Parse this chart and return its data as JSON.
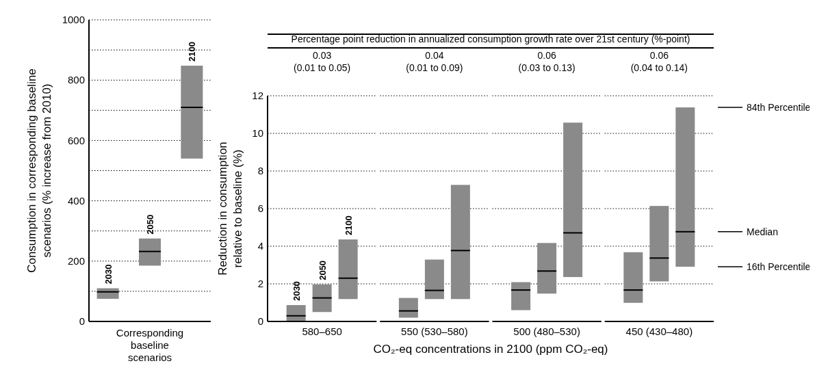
{
  "chart_data": [
    {
      "type": "box",
      "ylabel": "Consumption in corresponding baseline scenarios (% increase from 2010)",
      "xlabel": "Corresponding baseline scenarios",
      "categories": [
        "2030",
        "2050",
        "2100"
      ],
      "series": [
        {
          "color": "#8a8a8a",
          "boxes": [
            {
              "low": 75,
              "q1": 75,
              "median": 98,
              "q3": 110,
              "high": 110
            },
            {
              "low": 185,
              "q1": 185,
              "median": 232,
              "q3": 275,
              "high": 275
            },
            {
              "low": 540,
              "q1": 540,
              "median": 710,
              "q3": 848,
              "high": 848
            }
          ]
        }
      ],
      "ylim": [
        0,
        1000
      ],
      "yticks": [
        0,
        {
          "value": 100,
          "label": null
        },
        200,
        {
          "value": 300,
          "label": null
        },
        400,
        {
          "value": 500,
          "label": null
        },
        600,
        {
          "value": 700,
          "label": null
        },
        800,
        {
          "value": 900,
          "label": null
        },
        1000
      ],
      "grid": "y"
    },
    {
      "type": "box",
      "xlabel": "CO₂-eq concentrations in 2100 (ppm CO₂-eq)",
      "ylabel": "Reduction in consumption relative to baseline (%)",
      "categories": [
        "580–650",
        "550 (530–580)",
        "500 (480–530)",
        "450 (430–480)"
      ],
      "series": [
        {
          "name": "2030",
          "color": "#8a8a8a",
          "boxes": [
            {
              "low": 0,
              "q1": 0,
              "median": 0.3,
              "q3": 0.87,
              "high": 0.87
            },
            {
              "low": 0.2,
              "q1": 0.2,
              "median": 0.56,
              "q3": 1.25,
              "high": 1.25
            },
            {
              "low": 0.6,
              "q1": 0.6,
              "median": 1.67,
              "q3": 2.09,
              "high": 2.09
            },
            {
              "low": 0.99,
              "q1": 0.99,
              "median": 1.67,
              "q3": 3.68,
              "high": 3.68
            }
          ]
        },
        {
          "name": "2050",
          "color": "#8a8a8a",
          "boxes": [
            {
              "low": 0.5,
              "q1": 0.5,
              "median": 1.25,
              "q3": 1.97,
              "high": 1.97
            },
            {
              "low": 1.19,
              "q1": 1.19,
              "median": 1.65,
              "q3": 3.29,
              "high": 3.29
            },
            {
              "low": 1.48,
              "q1": 1.48,
              "median": 2.68,
              "q3": 4.17,
              "high": 4.17
            },
            {
              "low": 2.13,
              "q1": 2.13,
              "median": 3.37,
              "q3": 6.14,
              "high": 6.14
            }
          ]
        },
        {
          "name": "2100",
          "color": "#8a8a8a",
          "boxes": [
            {
              "low": 1.19,
              "q1": 1.19,
              "median": 2.3,
              "q3": 4.36,
              "high": 4.36
            },
            {
              "low": 1.19,
              "q1": 1.19,
              "median": 3.77,
              "q3": 7.26,
              "high": 7.26
            },
            {
              "low": 2.36,
              "q1": 2.36,
              "median": 4.71,
              "q3": 10.57,
              "high": 10.57
            },
            {
              "low": 2.91,
              "q1": 2.91,
              "median": 4.77,
              "q3": 11.38,
              "high": 11.38
            }
          ]
        }
      ],
      "ylim": [
        0,
        12
      ],
      "yticks": [
        0,
        2,
        4,
        6,
        8,
        10,
        12
      ],
      "grid": "y",
      "annotations": [
        "Percentage point reduction in annualized consumption growth rate over 21st century (%-point)",
        "0.03\n(0.01 to 0.05)",
        "0.04\n(0.01 to 0.09)",
        "0.06\n(0.03 to 0.13)",
        "0.06\n(0.04 to 0.14)",
        "84th Percentile",
        "Median",
        "16th Percentile"
      ]
    }
  ]
}
